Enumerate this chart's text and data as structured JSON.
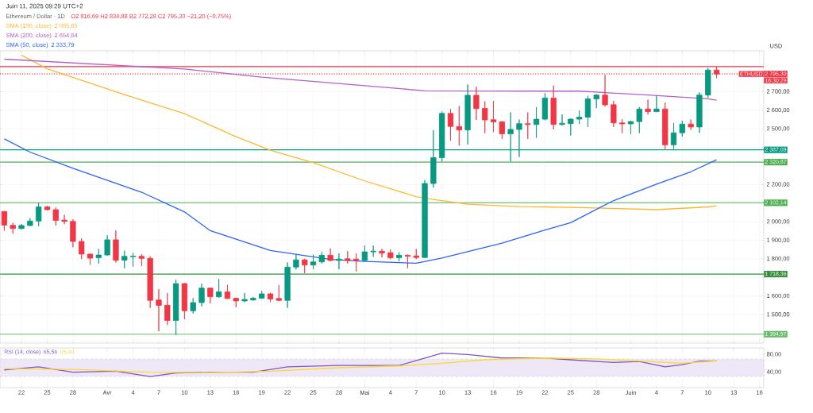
{
  "chart_data": [
    {
      "type": "candlestick",
      "title": "Juin 11, 2025 09:29 UTC+2",
      "subtitle": "Ethereum / Dollar · 1D",
      "ylabel": "USD",
      "x": [
        "2025-03-20",
        "2025-03-21",
        "2025-03-22",
        "2025-03-23",
        "2025-03-24",
        "2025-03-25",
        "2025-03-26",
        "2025-03-27",
        "2025-03-28",
        "2025-03-29",
        "2025-03-30",
        "2025-03-31",
        "2025-04-01",
        "2025-04-02",
        "2025-04-03",
        "2025-04-04",
        "2025-04-05",
        "2025-04-06",
        "2025-04-07",
        "2025-04-08",
        "2025-04-09",
        "2025-04-10",
        "2025-04-11",
        "2025-04-12",
        "2025-04-13",
        "2025-04-14",
        "2025-04-15",
        "2025-04-16",
        "2025-04-17",
        "2025-04-18",
        "2025-04-19",
        "2025-04-20",
        "2025-04-21",
        "2025-04-22",
        "2025-04-23",
        "2025-04-24",
        "2025-04-25",
        "2025-04-26",
        "2025-04-27",
        "2025-04-28",
        "2025-04-29",
        "2025-04-30",
        "2025-05-01",
        "2025-05-02",
        "2025-05-03",
        "2025-05-04",
        "2025-05-05",
        "2025-05-06",
        "2025-05-07",
        "2025-05-08",
        "2025-05-09",
        "2025-05-10",
        "2025-05-11",
        "2025-05-12",
        "2025-05-13",
        "2025-05-14",
        "2025-05-15",
        "2025-05-16",
        "2025-05-17",
        "2025-05-18",
        "2025-05-19",
        "2025-05-20",
        "2025-05-21",
        "2025-05-22",
        "2025-05-23",
        "2025-05-24",
        "2025-05-25",
        "2025-05-26",
        "2025-05-27",
        "2025-05-28",
        "2025-05-29",
        "2025-05-30",
        "2025-05-31",
        "2025-06-01",
        "2025-06-02",
        "2025-06-03",
        "2025-06-04",
        "2025-06-05",
        "2025-06-06",
        "2025-06-07",
        "2025-06-08",
        "2025-06-09",
        "2025-06-10",
        "2025-06-11"
      ],
      "ohlc": [
        [
          2055,
          2058,
          1952,
          1982
        ],
        [
          1981,
          1994,
          1936,
          1963
        ],
        [
          1963,
          1988,
          1960,
          1980
        ],
        [
          1980,
          2019,
          1977,
          2004
        ],
        [
          2004,
          2102,
          1976,
          2080
        ],
        [
          2080,
          2086,
          2061,
          2065
        ],
        [
          2065,
          2077,
          1980,
          2007
        ],
        [
          2009,
          2037,
          1987,
          2002
        ],
        [
          2002,
          2013,
          1863,
          1894
        ],
        [
          1894,
          1911,
          1799,
          1826
        ],
        [
          1826,
          1829,
          1769,
          1804
        ],
        [
          1806,
          1854,
          1775,
          1821
        ],
        [
          1821,
          1927,
          1818,
          1903
        ],
        [
          1903,
          1954,
          1781,
          1793
        ],
        [
          1793,
          1844,
          1750,
          1814
        ],
        [
          1812,
          1833,
          1759,
          1815
        ],
        [
          1814,
          1826,
          1762,
          1803
        ],
        [
          1803,
          1814,
          1537,
          1577
        ],
        [
          1579,
          1637,
          1411,
          1550
        ],
        [
          1551,
          1616,
          1445,
          1469
        ],
        [
          1469,
          1689,
          1390,
          1667
        ],
        [
          1667,
          1670,
          1475,
          1521
        ],
        [
          1521,
          1589,
          1506,
          1565
        ],
        [
          1565,
          1667,
          1545,
          1643
        ],
        [
          1643,
          1646,
          1561,
          1596
        ],
        [
          1596,
          1692,
          1591,
          1623
        ],
        [
          1623,
          1660,
          1584,
          1587
        ],
        [
          1588,
          1591,
          1540,
          1574
        ],
        [
          1574,
          1616,
          1567,
          1582
        ],
        [
          1579,
          1596,
          1576,
          1588
        ],
        [
          1588,
          1628,
          1585,
          1612
        ],
        [
          1612,
          1618,
          1567,
          1584
        ],
        [
          1587,
          1659,
          1573,
          1577
        ],
        [
          1577,
          1781,
          1537,
          1756
        ],
        [
          1756,
          1823,
          1744,
          1795
        ],
        [
          1795,
          1801,
          1723,
          1767
        ],
        [
          1767,
          1823,
          1744,
          1784
        ],
        [
          1784,
          1838,
          1775,
          1820
        ],
        [
          1820,
          1856,
          1787,
          1792
        ],
        [
          1792,
          1830,
          1744,
          1799
        ],
        [
          1801,
          1842,
          1775,
          1792
        ],
        [
          1799,
          1830,
          1732,
          1789
        ],
        [
          1792,
          1872,
          1787,
          1838
        ],
        [
          1838,
          1872,
          1811,
          1842
        ],
        [
          1842,
          1854,
          1809,
          1831
        ],
        [
          1833,
          1850,
          1799,
          1806
        ],
        [
          1806,
          1836,
          1787,
          1820
        ],
        [
          1820,
          1823,
          1750,
          1814
        ],
        [
          1816,
          1854,
          1799,
          1808
        ],
        [
          1808,
          2224,
          1805,
          2206
        ],
        [
          2206,
          2493,
          2184,
          2345
        ],
        [
          2345,
          2593,
          2324,
          2583
        ],
        [
          2583,
          2607,
          2436,
          2513
        ],
        [
          2513,
          2623,
          2410,
          2494
        ],
        [
          2494,
          2739,
          2416,
          2681
        ],
        [
          2681,
          2727,
          2548,
          2609
        ],
        [
          2610,
          2648,
          2477,
          2548
        ],
        [
          2549,
          2650,
          2483,
          2537
        ],
        [
          2538,
          2541,
          2446,
          2473
        ],
        [
          2473,
          2589,
          2324,
          2497
        ],
        [
          2497,
          2550,
          2349,
          2528
        ],
        [
          2528,
          2589,
          2446,
          2523
        ],
        [
          2523,
          2617,
          2452,
          2552
        ],
        [
          2552,
          2693,
          2546,
          2666
        ],
        [
          2666,
          2733,
          2497,
          2524
        ],
        [
          2523,
          2578,
          2519,
          2530
        ],
        [
          2528,
          2556,
          2464,
          2552
        ],
        [
          2552,
          2599,
          2526,
          2563
        ],
        [
          2563,
          2678,
          2510,
          2661
        ],
        [
          2661,
          2687,
          2611,
          2682
        ],
        [
          2682,
          2790,
          2620,
          2629
        ],
        [
          2630,
          2650,
          2510,
          2532
        ],
        [
          2532,
          2552,
          2477,
          2527
        ],
        [
          2527,
          2544,
          2471,
          2539
        ],
        [
          2539,
          2617,
          2477,
          2607
        ],
        [
          2607,
          2657,
          2577,
          2593
        ],
        [
          2593,
          2678,
          2590,
          2607
        ],
        [
          2607,
          2641,
          2391,
          2414
        ],
        [
          2414,
          2532,
          2385,
          2479
        ],
        [
          2479,
          2544,
          2458,
          2526
        ],
        [
          2526,
          2550,
          2495,
          2510
        ],
        [
          2510,
          2696,
          2479,
          2682
        ],
        [
          2682,
          2827,
          2668,
          2816.69
        ],
        [
          2816.69,
          2834.88,
          2772.28,
          2795.3
        ]
      ],
      "series": [
        {
          "type": "line",
          "name": "SMA (100, close)",
          "color": "#ffb82e",
          "x": [
            "2025-03-22",
            "2025-03-25",
            "2025-04-03",
            "2025-04-10",
            "2025-04-16",
            "2025-04-20",
            "2025-04-25",
            "2025-05-01",
            "2025-05-07",
            "2025-05-09",
            "2025-05-13",
            "2025-05-19",
            "2025-05-22",
            "2025-05-28",
            "2025-06-04",
            "2025-06-10",
            "2025-06-11"
          ],
          "values": [
            2897,
            2823,
            2684,
            2582,
            2458,
            2385,
            2318,
            2220,
            2135,
            2120,
            2094,
            2082,
            2080,
            2074,
            2065,
            2080,
            2085.65
          ]
        },
        {
          "type": "line",
          "name": "SMA (200, close)",
          "color": "#b45ecb",
          "x": [
            "2025-03-20",
            "2025-04-10",
            "2025-04-19",
            "2025-05-01",
            "2025-05-08",
            "2025-05-22",
            "2025-05-26",
            "2025-06-03",
            "2025-06-10",
            "2025-06-11"
          ],
          "values": [
            2875,
            2822,
            2778,
            2732,
            2705,
            2703,
            2703,
            2682,
            2662,
            2654.64
          ]
        },
        {
          "type": "line",
          "name": "SMA (50, close)",
          "color": "#2962ff",
          "x": [
            "2025-03-20",
            "2025-03-23",
            "2025-03-28",
            "2025-04-05",
            "2025-04-10",
            "2025-04-13",
            "2025-04-20",
            "2025-04-27",
            "2025-05-01",
            "2025-05-07",
            "2025-05-10",
            "2025-05-17",
            "2025-05-22",
            "2025-05-25",
            "2025-05-30",
            "2025-06-04",
            "2025-06-08",
            "2025-06-11"
          ],
          "values": [
            2446,
            2375,
            2288,
            2159,
            2053,
            1952,
            1845,
            1797,
            1787,
            1777,
            1805,
            1885,
            1955,
            1995,
            2114,
            2202,
            2269,
            2333.79
          ]
        }
      ],
      "ref_lines": [
        {
          "axis": "y",
          "value": 2834.88,
          "color": "#f23645"
        },
        {
          "axis": "y",
          "value": 2795.3,
          "label": "2 795,30",
          "color": "#f23645",
          "line_style": "dotted"
        },
        {
          "axis": "y",
          "value": 2387.09,
          "label": "2 387,09",
          "color": "#089981"
        },
        {
          "axis": "y",
          "value": 2320.87,
          "label": "2 320,87",
          "color": "#4caf50"
        },
        {
          "axis": "y",
          "value": 2102.14,
          "label": "2 102,14",
          "color": "#4caf50"
        },
        {
          "axis": "y",
          "value": 1718.36,
          "label": "1 718,36",
          "color": "#388e3c"
        },
        {
          "axis": "y",
          "value": 1394.97,
          "label": "1 394,97",
          "color": "#66bb6a"
        }
      ],
      "annotations": [
        "O2 816,69  H2 834,88  B2 772,28  C2 795,30  −21,20 (−0,75%)",
        "2 085,65",
        "2 654,64",
        "2 333,79",
        {
          "text": "ETHUSD",
          "y": 2795.3
        },
        "16:30:29"
      ],
      "xlim": [
        "2025-03-19T12:00",
        "2025-06-16T12:00"
      ],
      "ylim": [
        1347,
        2920
      ],
      "xticks": [
        {
          "value": "2025-03-22",
          "label": null
        },
        {
          "value": "2025-03-25",
          "label": null
        },
        {
          "value": "2025-03-28",
          "label": null
        },
        {
          "value": "2025-04-01",
          "label": null
        },
        {
          "value": "2025-04-04",
          "label": null
        },
        {
          "value": "2025-04-07",
          "label": null
        },
        {
          "value": "2025-04-10",
          "label": null
        },
        {
          "value": "2025-04-13",
          "label": null
        },
        {
          "value": "2025-04-16",
          "label": null
        },
        {
          "value": "2025-04-19",
          "label": null
        },
        {
          "value": "2025-04-22",
          "label": null
        },
        {
          "value": "2025-04-25",
          "label": null
        },
        {
          "value": "2025-04-28",
          "label": null
        },
        {
          "value": "2025-05-01",
          "label": null
        },
        {
          "value": "2025-05-04",
          "label": null
        },
        {
          "value": "2025-05-07",
          "label": null
        },
        {
          "value": "2025-05-10",
          "label": null
        },
        {
          "value": "2025-05-13",
          "label": null
        },
        {
          "value": "2025-05-16",
          "label": null
        },
        {
          "value": "2025-05-19",
          "label": null
        },
        {
          "value": "2025-05-22",
          "label": null
        },
        {
          "value": "2025-05-25",
          "label": null
        },
        {
          "value": "2025-05-28",
          "label": null
        },
        {
          "value": "2025-06-01",
          "label": null
        },
        {
          "value": "2025-06-04",
          "label": null
        },
        {
          "value": "2025-06-07",
          "label": null
        },
        {
          "value": "2025-06-10",
          "label": null
        },
        {
          "value": "2025-06-13",
          "label": null
        },
        {
          "value": "2025-06-16",
          "label": null
        }
      ],
      "yticks": [
        {
          "value": 1500,
          "label": "1 500,00"
        },
        {
          "value": 1600,
          "label": "1 600,00"
        },
        {
          "value": 1700,
          "label": null
        },
        {
          "value": 1800,
          "label": "1 800,00"
        },
        {
          "value": 1900,
          "label": "1 900,00"
        },
        {
          "value": 2000,
          "label": "2 000,00"
        },
        {
          "value": 2100,
          "label": null
        },
        {
          "value": 2200,
          "label": "2 200,00"
        },
        {
          "value": 2300,
          "label": null
        },
        {
          "value": 2400,
          "label": null
        },
        {
          "value": 2500,
          "label": "2 500,00"
        },
        {
          "value": 2600,
          "label": "2 600,00"
        },
        {
          "value": 2700,
          "label": "2 700,00"
        },
        {
          "value": 2800,
          "label": null
        }
      ],
      "grid": true,
      "legend": "top left",
      "tick_labels": "y"
    },
    {
      "type": "line",
      "series": [
        {
          "name": "RSI (14, close)",
          "color": "#7e57c2",
          "x": [
            "2025-03-20",
            "2025-03-24",
            "2025-03-28",
            "2025-04-02",
            "2025-04-06",
            "2025-04-09",
            "2025-04-13",
            "2025-04-18",
            "2025-04-22",
            "2025-04-28",
            "2025-05-05",
            "2025-05-08",
            "2025-05-10",
            "2025-05-13",
            "2025-05-17",
            "2025-05-22",
            "2025-05-25",
            "2025-05-30",
            "2025-06-02",
            "2025-06-05",
            "2025-06-07",
            "2025-06-09",
            "2025-06-11"
          ],
          "values": [
            45,
            52,
            40,
            42,
            30,
            38,
            40,
            40,
            52,
            55,
            55,
            72,
            83,
            80,
            72,
            72,
            68,
            62,
            64,
            52,
            57,
            65,
            65.56
          ]
        },
        {
          "color": "#fdd835",
          "x": [
            "2025-03-20",
            "2025-03-28",
            "2025-04-06",
            "2025-04-13",
            "2025-04-20",
            "2025-04-28",
            "2025-05-05",
            "2025-05-10",
            "2025-05-15",
            "2025-05-22",
            "2025-05-28",
            "2025-06-03",
            "2025-06-07",
            "2025-06-11"
          ],
          "values": [
            48,
            46,
            40,
            39,
            42,
            50,
            54,
            60,
            68,
            72,
            70,
            64,
            60,
            65.4
          ]
        }
      ],
      "annotations": [
        "65,56",
        "65,40"
      ],
      "bands": [
        {
          "axis": "y",
          "from": 30,
          "to": 70,
          "color": "#ede7f6"
        }
      ],
      "xlim": [
        "2025-03-19T12:00",
        "2025-06-16T12:00"
      ],
      "ylim": [
        5,
        95
      ],
      "xticks": [
        {
          "value": "2025-03-22",
          "label": "22"
        },
        {
          "value": "2025-03-25",
          "label": "25"
        },
        {
          "value": "2025-03-28",
          "label": "28"
        },
        {
          "value": "2025-04-01",
          "label": "Avr"
        },
        {
          "value": "2025-04-04",
          "label": "4"
        },
        {
          "value": "2025-04-07",
          "label": "7"
        },
        {
          "value": "2025-04-10",
          "label": "10"
        },
        {
          "value": "2025-04-13",
          "label": "13"
        },
        {
          "value": "2025-04-16",
          "label": "16"
        },
        {
          "value": "2025-04-19",
          "label": "19"
        },
        {
          "value": "2025-04-22",
          "label": "22"
        },
        {
          "value": "2025-04-25",
          "label": "25"
        },
        {
          "value": "2025-04-28",
          "label": "28"
        },
        {
          "value": "2025-05-01",
          "label": "Mai"
        },
        {
          "value": "2025-05-04",
          "label": "4"
        },
        {
          "value": "2025-05-07",
          "label": "7"
        },
        {
          "value": "2025-05-10",
          "label": "10"
        },
        {
          "value": "2025-05-13",
          "label": "13"
        },
        {
          "value": "2025-05-16",
          "label": "16"
        },
        {
          "value": "2025-05-19",
          "label": "19"
        },
        {
          "value": "2025-05-22",
          "label": "22"
        },
        {
          "value": "2025-05-25",
          "label": "25"
        },
        {
          "value": "2025-05-28",
          "label": "28"
        },
        {
          "value": "2025-06-01",
          "label": "Juin"
        },
        {
          "value": "2025-06-04",
          "label": "4"
        },
        {
          "value": "2025-06-07",
          "label": "7"
        },
        {
          "value": "2025-06-10",
          "label": "10"
        },
        {
          "value": "2025-06-13",
          "label": "13"
        },
        {
          "value": "2025-06-16",
          "label": "16"
        }
      ],
      "yticks": [
        {
          "value": 80,
          "label": "80,00"
        },
        {
          "value": 40,
          "label": "40,00"
        }
      ],
      "grid": "x",
      "legend": "top left"
    }
  ]
}
